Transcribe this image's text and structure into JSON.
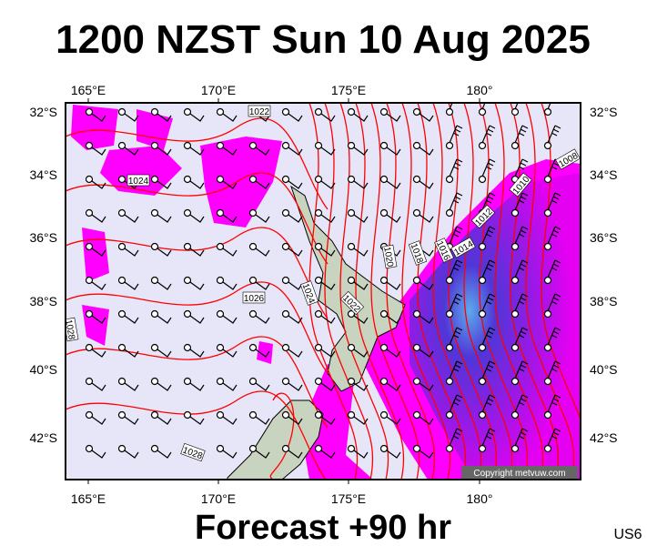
{
  "header": {
    "title": "1200 NZST Sun 10 Aug 2025"
  },
  "map": {
    "lon_labels": [
      "165°E",
      "170°E",
      "175°E",
      "180°"
    ],
    "lat_labels": [
      "32°S",
      "34°S",
      "36°S",
      "38°S",
      "40°S",
      "42°S"
    ],
    "isobar_labels": [
      "1022",
      "1024",
      "1026",
      "1028",
      "1024",
      "1022",
      "1020",
      "1018",
      "1016",
      "1014",
      "1012",
      "1010",
      "1008",
      "1028"
    ]
  },
  "copyright": "Copyright metvuw.com",
  "footer": {
    "forecast": "Forecast +90 hr",
    "code": "US6"
  }
}
